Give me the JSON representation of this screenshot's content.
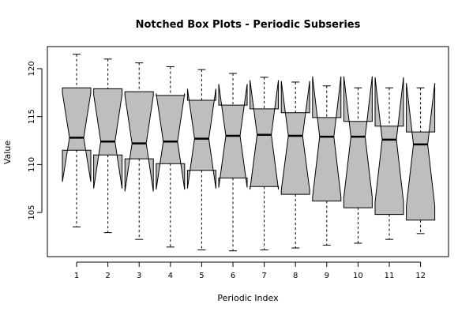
{
  "chart_data": {
    "type": "box",
    "variant": "notched",
    "title": "Notched Box Plots - Periodic Subseries",
    "xlabel": "Periodic Index",
    "ylabel": "Value",
    "categories": [
      "1",
      "2",
      "3",
      "4",
      "5",
      "6",
      "7",
      "8",
      "9",
      "10",
      "11",
      "12"
    ],
    "y_ticks": [
      105,
      110,
      115,
      120
    ],
    "ylim": [
      100.4,
      122.3
    ],
    "box_fill": "#bebebe",
    "boxes": [
      {
        "category": "1",
        "min": 103.5,
        "q1": 111.5,
        "median": 112.8,
        "q3": 118.0,
        "max": 121.5,
        "notch_low": 108.2,
        "notch_high": 117.5
      },
      {
        "category": "2",
        "min": 102.9,
        "q1": 111.0,
        "median": 112.4,
        "q3": 117.9,
        "max": 121.0,
        "notch_low": 107.5,
        "notch_high": 117.3
      },
      {
        "category": "3",
        "min": 102.2,
        "q1": 110.6,
        "median": 112.2,
        "q3": 117.6,
        "max": 120.6,
        "notch_low": 107.2,
        "notch_high": 117.2
      },
      {
        "category": "4",
        "min": 101.4,
        "q1": 110.1,
        "median": 112.4,
        "q3": 117.2,
        "max": 120.2,
        "notch_low": 107.4,
        "notch_high": 117.4
      },
      {
        "category": "5",
        "min": 101.1,
        "q1": 109.4,
        "median": 112.7,
        "q3": 116.7,
        "max": 119.9,
        "notch_low": 107.5,
        "notch_high": 117.9
      },
      {
        "category": "6",
        "min": 101.0,
        "q1": 108.6,
        "median": 113.0,
        "q3": 116.2,
        "max": 119.5,
        "notch_low": 107.6,
        "notch_high": 118.4
      },
      {
        "category": "7",
        "min": 101.1,
        "q1": 107.7,
        "median": 113.1,
        "q3": 115.8,
        "max": 119.1,
        "notch_low": 107.4,
        "notch_high": 118.8
      },
      {
        "category": "8",
        "min": 101.3,
        "q1": 106.9,
        "median": 113.0,
        "q3": 115.4,
        "max": 118.6,
        "notch_low": 107.3,
        "notch_high": 118.7
      },
      {
        "category": "9",
        "min": 101.6,
        "q1": 106.2,
        "median": 112.9,
        "q3": 114.9,
        "max": 118.2,
        "notch_low": 106.6,
        "notch_high": 119.2
      },
      {
        "category": "10",
        "min": 101.8,
        "q1": 105.5,
        "median": 112.9,
        "q3": 114.5,
        "max": 118.0,
        "notch_low": 106.6,
        "notch_high": 119.2
      },
      {
        "category": "11",
        "min": 102.2,
        "q1": 104.8,
        "median": 112.6,
        "q3": 114.0,
        "max": 118.0,
        "notch_low": 106.1,
        "notch_high": 119.1
      },
      {
        "category": "12",
        "min": 102.8,
        "q1": 104.2,
        "median": 112.1,
        "q3": 113.4,
        "max": 118.0,
        "notch_low": 105.7,
        "notch_high": 118.5
      }
    ],
    "grid": false,
    "legend": "none"
  }
}
